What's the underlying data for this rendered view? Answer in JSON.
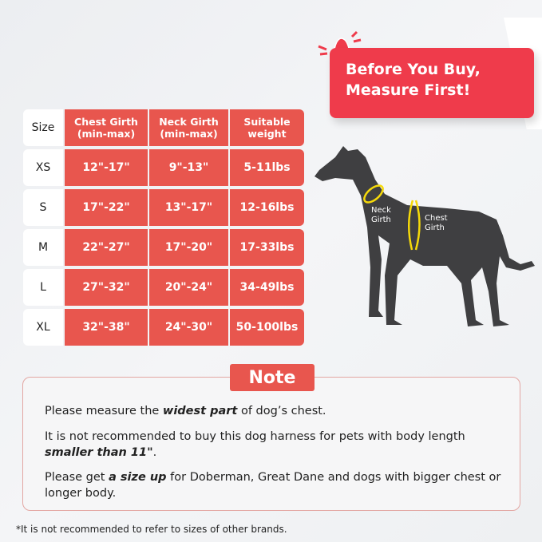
{
  "banner": {
    "line1": "Before You Buy,",
    "line2": "Measure First!",
    "icon": "bell-icon",
    "color": "#ef3b4b"
  },
  "table": {
    "headers": [
      "Size",
      "Chest Girth\n(min-max)",
      "Neck Girth\n(min-max)",
      "Suitable\nweight"
    ],
    "rows": [
      [
        "XS",
        "12\"-17\"",
        "9\"-13\"",
        "5-11lbs"
      ],
      [
        "S",
        "17\"-22\"",
        "13\"-17\"",
        "12-16lbs"
      ],
      [
        "M",
        "22\"-27\"",
        "17\"-20\"",
        "17-33lbs"
      ],
      [
        "L",
        "27\"-32\"",
        "20\"-24\"",
        "34-49lbs"
      ],
      [
        "XL",
        "32\"-38\"",
        "24\"-30\"",
        "50-100lbs"
      ]
    ],
    "accent": "#e8564e"
  },
  "dog": {
    "neck_label": "Neck\nGirth",
    "chest_label": "Chest\nGirth",
    "marker_color": "#f5d90a"
  },
  "note": {
    "title": "Note",
    "p1_pre": "Please measure the ",
    "p1_em": "widest part",
    "p1_post": " of dog’s chest.",
    "p2_pre": "It is not recommended to buy this dog harness for pets with body length ",
    "p2_em": "smaller than 11\"",
    "p2_post": ".",
    "p3_pre": "Please get ",
    "p3_em": "a size up",
    "p3_post": " for Doberman, Great Dane and dogs with bigger chest or longer body."
  },
  "footnote": "*It is not recommended to refer to sizes of other brands."
}
